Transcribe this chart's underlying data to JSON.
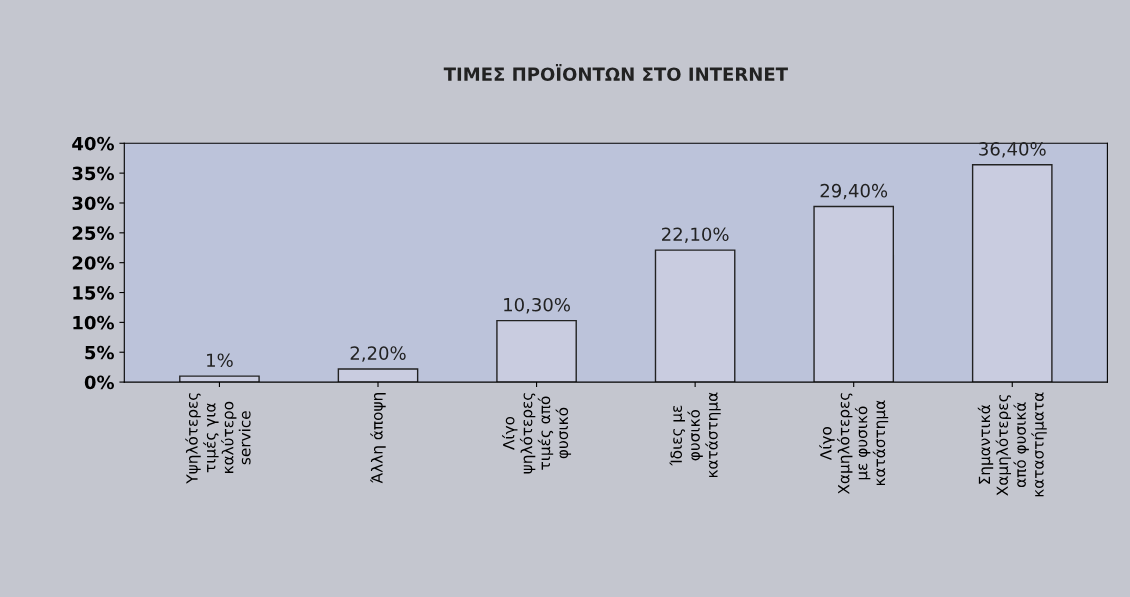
{
  "chart_data": {
    "type": "bar",
    "title": "ΤΙΜΕΣ ΠΡΟΪΟΝΤΩΝ ΣΤΟ INTERNET",
    "categories": [
      "Υψηλότερες\nτιμές για\nκαλύτερο\nservice",
      "Άλλη άποψη",
      "Λίγο\nψηλότερες\nτιμές από\nφυσικό",
      "Ίδιες με\nφυσικό\nκατάστημα",
      "Λίγο\nΧαμηλότερες\nμε φυσικό\nκατάστημα",
      "Σημαντικά\nΧαμηλότερες\nαπό φυσικά\nκαταστήματα"
    ],
    "values": [
      1,
      2.2,
      10.3,
      22.1,
      29.4,
      36.4
    ],
    "value_labels": [
      "1%",
      "2,20%",
      "10,30%",
      "22,10%",
      "29,40%",
      "36,40%"
    ],
    "color": "#c9cce0",
    "ylim": [
      0,
      40
    ],
    "yticks": [
      {
        "value": 0,
        "label": "0%"
      },
      {
        "value": 5,
        "label": "5%"
      },
      {
        "value": 10,
        "label": "10%"
      },
      {
        "value": 15,
        "label": "15%"
      },
      {
        "value": 20,
        "label": "20%"
      },
      {
        "value": 25,
        "label": "25%"
      },
      {
        "value": 30,
        "label": "30%"
      },
      {
        "value": 35,
        "label": "35%"
      },
      {
        "value": 40,
        "label": "40%"
      }
    ],
    "grid": false
  }
}
